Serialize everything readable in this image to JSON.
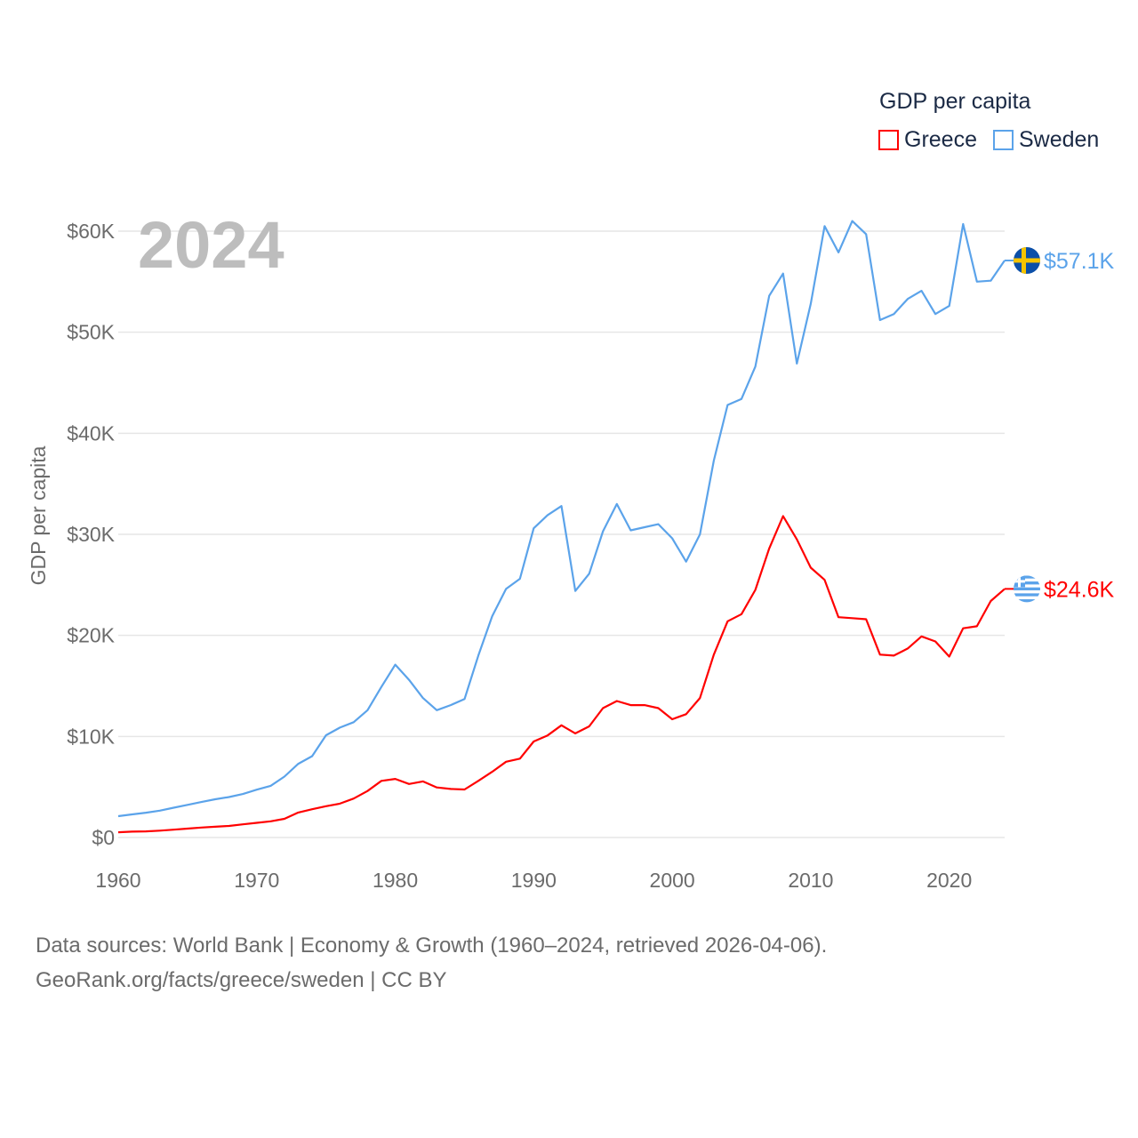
{
  "legend": {
    "title": "GDP per capita"
  },
  "footer": {
    "line1": "Data sources: World Bank | Economy & Growth (1960–2024, retrieved 2026-04-06).",
    "line2": "GeoRank.org/facts/greece/sweden | CC BY"
  },
  "chart_data": {
    "type": "line",
    "title": "2024",
    "xlabel": "",
    "ylabel": "GDP per capita",
    "xlim": [
      1960,
      2024
    ],
    "ylim": [
      0,
      60000
    ],
    "grid": true,
    "legend_position": "top-right",
    "x_ticks": [
      1960,
      1970,
      1980,
      1990,
      2000,
      2010,
      2020
    ],
    "y_ticks": [
      0,
      10000,
      20000,
      30000,
      40000,
      50000,
      60000
    ],
    "y_tick_labels": [
      "$0",
      "$10K",
      "$20K",
      "$30K",
      "$40K",
      "$50K",
      "$60K"
    ],
    "x_start": 1960,
    "series": [
      {
        "name": "Greece",
        "color": "#ff0000",
        "end_label": "$24.6K",
        "flag": "greece-flag",
        "values": [
          520,
          578,
          606,
          680,
          771,
          880,
          981,
          1063,
          1142,
          1300,
          1450,
          1600,
          1850,
          2470,
          2800,
          3100,
          3350,
          3850,
          4600,
          5600,
          5800,
          5300,
          5550,
          4950,
          4800,
          4750,
          5600,
          6500,
          7500,
          7800,
          9500,
          10100,
          11100,
          10300,
          11000,
          12800,
          13500,
          13100,
          13100,
          12800,
          11700,
          12200,
          13800,
          18100,
          21400,
          22100,
          24500,
          28600,
          31800,
          29500,
          26700,
          25500,
          21800,
          21700,
          21600,
          18100,
          18000,
          18700,
          19900,
          19400,
          17900,
          20700,
          20900,
          23400,
          24600
        ]
      },
      {
        "name": "Sweden",
        "color": "#5ba3ea",
        "end_label": "$57.1K",
        "flag": "sweden-flag",
        "values": [
          2114,
          2289,
          2456,
          2657,
          2946,
          3231,
          3514,
          3779,
          3999,
          4301,
          4730,
          5110,
          6030,
          7292,
          8050,
          10118,
          10873,
          11414,
          12600,
          14900,
          17100,
          15600,
          13800,
          12600,
          13100,
          13700,
          18000,
          21900,
          24600,
          25600,
          30600,
          31900,
          32800,
          24400,
          26100,
          30300,
          33000,
          30400,
          30700,
          31000,
          29600,
          27300,
          30000,
          37300,
          42800,
          43400,
          46600,
          53600,
          55800,
          46900,
          52800,
          60500,
          57900,
          61000,
          59700,
          51200,
          51800,
          53300,
          54100,
          51800,
          52600,
          60700,
          55000,
          55100,
          57100
        ]
      }
    ]
  }
}
